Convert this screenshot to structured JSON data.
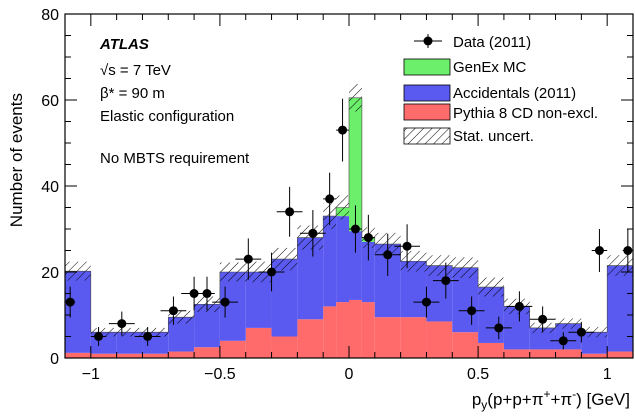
{
  "chart_data": {
    "type": "histogram",
    "ylabel": "Number of events",
    "xlabel_parts": {
      "p": "p",
      "y": "y",
      "rest": "(p+p+π",
      "plus": "+",
      "mid": "+π",
      "minus": "-",
      "end": ") [GeV]"
    },
    "xlim": [
      -1.1,
      1.1
    ],
    "ylim": [
      0,
      80
    ],
    "x_ticks": [
      -1,
      -0.5,
      0,
      0.5,
      1
    ],
    "x_tick_labels": [
      "−1",
      "−0.5",
      "0",
      "0.5",
      "1"
    ],
    "y_ticks": [
      0,
      20,
      40,
      60,
      80
    ],
    "y_tick_labels": [
      "0",
      "20",
      "40",
      "60",
      "80"
    ],
    "bin_edges": [
      -1.1,
      -1.0,
      -0.9,
      -0.8,
      -0.7,
      -0.6,
      -0.5,
      -0.4,
      -0.3,
      -0.2,
      -0.1,
      -0.05,
      0.0,
      0.05,
      0.1,
      0.2,
      0.3,
      0.4,
      0.5,
      0.6,
      0.7,
      0.8,
      0.9,
      1.0,
      1.1
    ],
    "series": [
      {
        "name": "Pythia 8 CD non-excl.",
        "color": "#ff6b6b",
        "values": [
          1.2,
          1,
          1,
          1,
          1.5,
          2.5,
          4,
          7,
          5,
          9,
          12,
          13,
          13.5,
          13,
          9.5,
          9.5,
          8.5,
          6,
          3.5,
          2,
          2,
          2,
          1,
          1.5
        ]
      },
      {
        "name": "Accidentals (2011)",
        "color": "#5a5af0",
        "values": [
          19,
          5,
          5,
          5,
          8,
          10,
          16,
          13,
          18,
          19,
          21,
          20,
          16,
          14,
          17,
          13,
          13,
          15,
          13,
          10,
          5,
          6,
          5,
          20
        ]
      },
      {
        "name": "GenEx MC",
        "color": "#6cf06c",
        "values": [
          0,
          0,
          0,
          0,
          0,
          0,
          0,
          0,
          0,
          0,
          0,
          2,
          31,
          1,
          0,
          0,
          0,
          0,
          0,
          0,
          0,
          0,
          0,
          0
        ]
      }
    ],
    "stat_uncert": [
      2.2,
      1,
      1,
      1,
      1.5,
      1.8,
      2.2,
      2.4,
      2.6,
      2.8,
      3,
      2.8,
      3.2,
      2.4,
      2.6,
      2.4,
      2.4,
      2.4,
      2.2,
      1.8,
      1.2,
      1.2,
      1.2,
      2.4
    ],
    "data": {
      "name": "Data (2011)",
      "x": [
        -1.08,
        -0.97,
        -0.88,
        -0.78,
        -0.68,
        -0.6,
        -0.55,
        -0.48,
        -0.39,
        -0.3,
        -0.23,
        -0.14,
        -0.075,
        -0.025,
        0.025,
        0.075,
        0.15,
        0.225,
        0.3,
        0.375,
        0.475,
        0.58,
        0.66,
        0.75,
        0.83,
        0.9,
        0.97,
        1.08
      ],
      "y": [
        13,
        5,
        8,
        5,
        11,
        15,
        15,
        13,
        23,
        20,
        34,
        29,
        37,
        53,
        30,
        28,
        24,
        26,
        13,
        18,
        11,
        7,
        12,
        9,
        4,
        6,
        25,
        25
      ],
      "xerr": [
        0.02,
        0.03,
        0.05,
        0.05,
        0.05,
        0.05,
        0.03,
        0.05,
        0.05,
        0.05,
        0.05,
        0.05,
        0.025,
        0.025,
        0.025,
        0.025,
        0.05,
        0.05,
        0.05,
        0.05,
        0.05,
        0.05,
        0.05,
        0.05,
        0.05,
        0.05,
        0.03,
        0.02
      ],
      "yerr": [
        3.6,
        2.2,
        2.8,
        2.2,
        3.3,
        3.9,
        3.9,
        3.6,
        4.8,
        4.5,
        5.8,
        5.4,
        6.1,
        7.3,
        5.5,
        5.3,
        4.9,
        5.1,
        3.6,
        4.2,
        3.3,
        2.6,
        3.5,
        3.0,
        2.0,
        2.4,
        5.0,
        5.0
      ]
    },
    "annotations": {
      "experiment": "ATLAS",
      "energy": "√s = 7 TeV",
      "beta": "β* = 90 m",
      "config": "Elastic configuration",
      "requirement": "No MBTS requirement"
    },
    "legend": {
      "placement": "top-right",
      "entries": [
        "Data (2011)",
        "GenEx MC",
        "Accidentals (2011)",
        "Pythia 8 CD non-excl.",
        "Stat. uncert."
      ]
    }
  }
}
